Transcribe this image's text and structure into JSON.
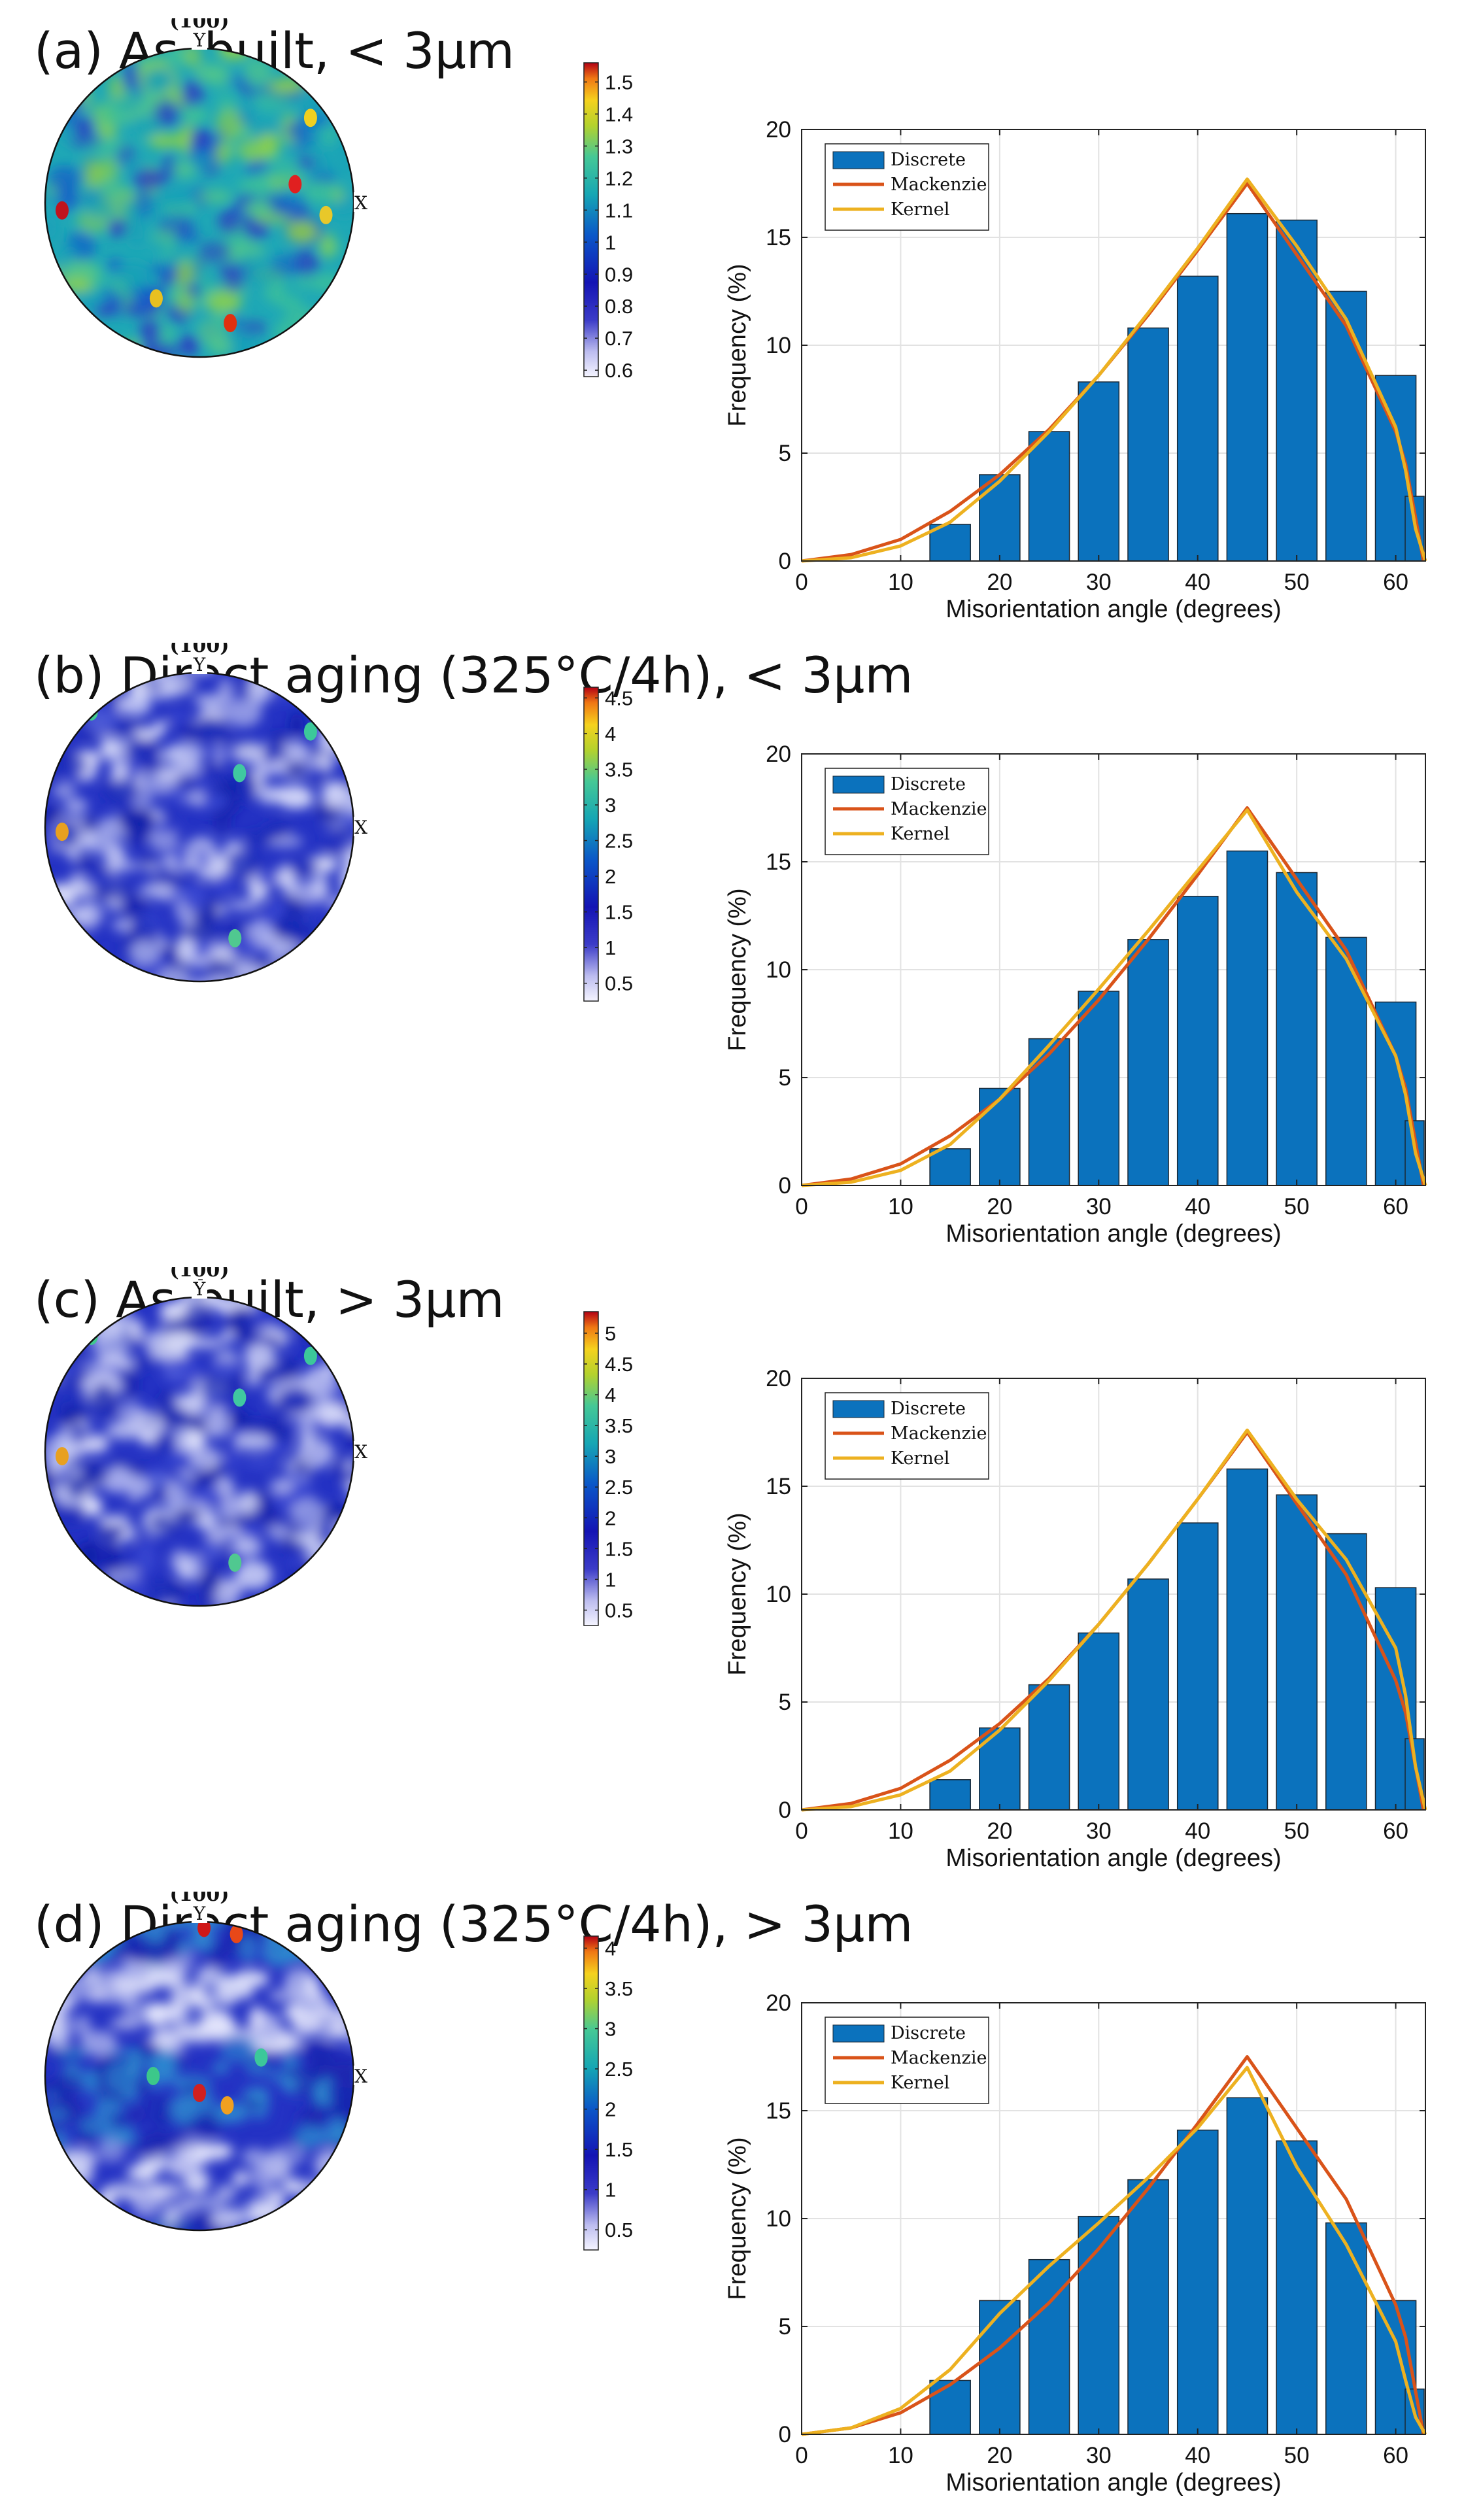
{
  "figure": {
    "panels": [
      {
        "letter": "(a)",
        "title": "(a)  As–built, < 3μm",
        "pole_figure": {
          "pole_label": "(100)",
          "axis_y": "Y",
          "axis_x": "X",
          "colorbar_ticks": [
            "1.5",
            "1.4",
            "1.3",
            "1.2",
            "1.1",
            "1",
            "0.9",
            "0.8",
            "0.7",
            "0.6"
          ],
          "colorbar_range": [
            0.58,
            1.56
          ],
          "style": "uniform"
        }
      },
      {
        "letter": "(b)",
        "title": "(b)  Direct aging (325°C/4h), < 3μm",
        "pole_figure": {
          "pole_label": "(100)",
          "axis_y": "Y",
          "axis_x": "X",
          "colorbar_ticks": [
            "4.5",
            "4",
            "3.5",
            "3",
            "2.5",
            "2",
            "1.5",
            "1",
            "0.5"
          ],
          "colorbar_range": [
            0.25,
            4.65
          ],
          "style": "blue"
        }
      },
      {
        "letter": "(c)",
        "title": "(c)  As-built, > 3μm",
        "pole_figure": {
          "pole_label": "(100)",
          "axis_y": "Y",
          "axis_x": "X",
          "colorbar_ticks": [
            "5",
            "4.5",
            "4",
            "3.5",
            "3",
            "2.5",
            "2",
            "1.5",
            "1",
            "0.5"
          ],
          "colorbar_range": [
            0.25,
            5.35
          ],
          "style": "blue"
        }
      },
      {
        "letter": "(d)",
        "title": "(d)  Direct aging (325°C/4h), > 3μm",
        "pole_figure": {
          "pole_label": "(100)",
          "axis_y": "Y",
          "axis_x": "X",
          "colorbar_ticks": [
            "4",
            "3.5",
            "3",
            "2.5",
            "2",
            "1.5",
            "1",
            "0.5"
          ],
          "colorbar_range": [
            0.25,
            4.15
          ],
          "style": "banded"
        }
      }
    ]
  },
  "chart_data": [
    {
      "type": "bar",
      "panel": "(a)",
      "xlabel": "Misorientation angle (degrees)",
      "ylabel": "Frequency (%)",
      "xlim": [
        0,
        63
      ],
      "ylim": [
        0,
        20
      ],
      "xticks": [
        0,
        10,
        20,
        30,
        40,
        50,
        60
      ],
      "yticks": [
        0,
        5,
        10,
        15,
        20
      ],
      "grid": true,
      "legend": [
        "Discrete",
        "Mackenzie",
        "Kernel"
      ],
      "legend_position": "top-left",
      "bar_centers": [
        15,
        20,
        25,
        30,
        35,
        40,
        45,
        50,
        55,
        60,
        63
      ],
      "bar_values": [
        1.7,
        4.0,
        6.0,
        8.3,
        10.8,
        13.2,
        16.1,
        15.8,
        12.5,
        8.6,
        3.0
      ],
      "series": [
        {
          "name": "Mackenzie",
          "color": "#d95319",
          "x": [
            0,
            5,
            10,
            15,
            20,
            25,
            30,
            35,
            40,
            45,
            50,
            55,
            60,
            61,
            62,
            62.8
          ],
          "y": [
            0,
            0.3,
            1.0,
            2.3,
            4.0,
            6.1,
            8.6,
            11.4,
            14.4,
            17.5,
            14.2,
            10.9,
            6.0,
            4.5,
            2.0,
            0
          ]
        },
        {
          "name": "Kernel",
          "color": "#edb120",
          "x": [
            0,
            5,
            10,
            15,
            20,
            25,
            30,
            35,
            40,
            45,
            50,
            55,
            60,
            61,
            62,
            63
          ],
          "y": [
            0,
            0.15,
            0.7,
            1.8,
            3.7,
            6.0,
            8.6,
            11.5,
            14.5,
            17.7,
            14.6,
            11.2,
            6.2,
            4.2,
            1.5,
            0
          ]
        }
      ]
    },
    {
      "type": "bar",
      "panel": "(b)",
      "xlabel": "Misorientation angle (degrees)",
      "ylabel": "Frequency (%)",
      "xlim": [
        0,
        63
      ],
      "ylim": [
        0,
        20
      ],
      "xticks": [
        0,
        10,
        20,
        30,
        40,
        50,
        60
      ],
      "yticks": [
        0,
        5,
        10,
        15,
        20
      ],
      "grid": true,
      "legend": [
        "Discrete",
        "Mackenzie",
        "Kernel"
      ],
      "legend_position": "top-left",
      "bar_centers": [
        15,
        20,
        25,
        30,
        35,
        40,
        45,
        50,
        55,
        60,
        63
      ],
      "bar_values": [
        1.7,
        4.5,
        6.8,
        9.0,
        11.4,
        13.4,
        15.5,
        14.5,
        11.5,
        8.5,
        3.0
      ],
      "series": [
        {
          "name": "Mackenzie",
          "color": "#d95319",
          "x": [
            0,
            5,
            10,
            15,
            20,
            25,
            30,
            35,
            40,
            45,
            50,
            55,
            60,
            61,
            62,
            62.8
          ],
          "y": [
            0,
            0.3,
            1.0,
            2.3,
            4.0,
            6.1,
            8.6,
            11.4,
            14.4,
            17.5,
            14.2,
            10.9,
            6.0,
            4.5,
            2.0,
            0
          ]
        },
        {
          "name": "Kernel",
          "color": "#edb120",
          "x": [
            0,
            5,
            10,
            15,
            20,
            25,
            30,
            35,
            40,
            45,
            50,
            55,
            60,
            61,
            62,
            63
          ],
          "y": [
            0,
            0.15,
            0.7,
            1.9,
            4.0,
            6.5,
            9.1,
            11.8,
            14.6,
            17.4,
            13.6,
            10.5,
            6.0,
            4.2,
            1.5,
            0
          ]
        }
      ]
    },
    {
      "type": "bar",
      "panel": "(c)",
      "xlabel": "Misorientation angle (degrees)",
      "ylabel": "Frequency (%)",
      "xlim": [
        0,
        63
      ],
      "ylim": [
        0,
        20
      ],
      "xticks": [
        0,
        10,
        20,
        30,
        40,
        50,
        60
      ],
      "yticks": [
        0,
        5,
        10,
        15,
        20
      ],
      "grid": true,
      "legend": [
        "Discrete",
        "Mackenzie",
        "Kernel"
      ],
      "legend_position": "top-left",
      "bar_centers": [
        15,
        20,
        25,
        30,
        35,
        40,
        45,
        50,
        55,
        60,
        63
      ],
      "bar_values": [
        1.4,
        3.8,
        5.8,
        8.2,
        10.7,
        13.3,
        15.8,
        14.6,
        12.8,
        10.3,
        3.3
      ],
      "series": [
        {
          "name": "Mackenzie",
          "color": "#d95319",
          "x": [
            0,
            5,
            10,
            15,
            20,
            25,
            30,
            35,
            40,
            45,
            50,
            55,
            60,
            61,
            62,
            62.8
          ],
          "y": [
            0,
            0.3,
            1.0,
            2.3,
            4.0,
            6.1,
            8.6,
            11.4,
            14.4,
            17.5,
            14.2,
            10.9,
            6.0,
            4.5,
            2.0,
            0
          ]
        },
        {
          "name": "Kernel",
          "color": "#edb120",
          "x": [
            0,
            5,
            10,
            15,
            20,
            25,
            30,
            35,
            40,
            45,
            50,
            55,
            60,
            61,
            62,
            63
          ],
          "y": [
            0,
            0.15,
            0.7,
            1.8,
            3.7,
            6.0,
            8.6,
            11.4,
            14.4,
            17.6,
            14.4,
            11.6,
            7.5,
            5.3,
            2.0,
            0
          ]
        }
      ]
    },
    {
      "type": "bar",
      "panel": "(d)",
      "xlabel": "Misorientation angle (degrees)",
      "ylabel": "Frequency (%)",
      "xlim": [
        0,
        63
      ],
      "ylim": [
        0,
        20
      ],
      "xticks": [
        0,
        10,
        20,
        30,
        40,
        50,
        60
      ],
      "yticks": [
        0,
        5,
        10,
        15,
        20
      ],
      "grid": true,
      "legend": [
        "Discrete",
        "Mackenzie",
        "Kernel"
      ],
      "legend_position": "top-left",
      "bar_centers": [
        15,
        20,
        25,
        30,
        35,
        40,
        45,
        50,
        55,
        60,
        63
      ],
      "bar_values": [
        2.5,
        6.2,
        8.1,
        10.1,
        11.8,
        14.1,
        15.6,
        13.6,
        9.8,
        6.2,
        2.1
      ],
      "series": [
        {
          "name": "Mackenzie",
          "color": "#d95319",
          "x": [
            0,
            5,
            10,
            15,
            20,
            25,
            30,
            35,
            40,
            45,
            50,
            55,
            60,
            61,
            62,
            62.8
          ],
          "y": [
            0,
            0.3,
            1.0,
            2.3,
            4.0,
            6.1,
            8.6,
            11.4,
            14.4,
            17.5,
            14.2,
            10.9,
            6.0,
            4.5,
            2.0,
            0
          ]
        },
        {
          "name": "Kernel",
          "color": "#edb120",
          "x": [
            0,
            5,
            10,
            15,
            20,
            25,
            30,
            35,
            40,
            45,
            50,
            55,
            60,
            61,
            62,
            63
          ],
          "y": [
            0,
            0.3,
            1.2,
            3.0,
            5.6,
            7.8,
            9.8,
            11.9,
            14.2,
            17.0,
            12.4,
            8.8,
            4.3,
            2.5,
            0.8,
            0
          ]
        }
      ]
    }
  ]
}
